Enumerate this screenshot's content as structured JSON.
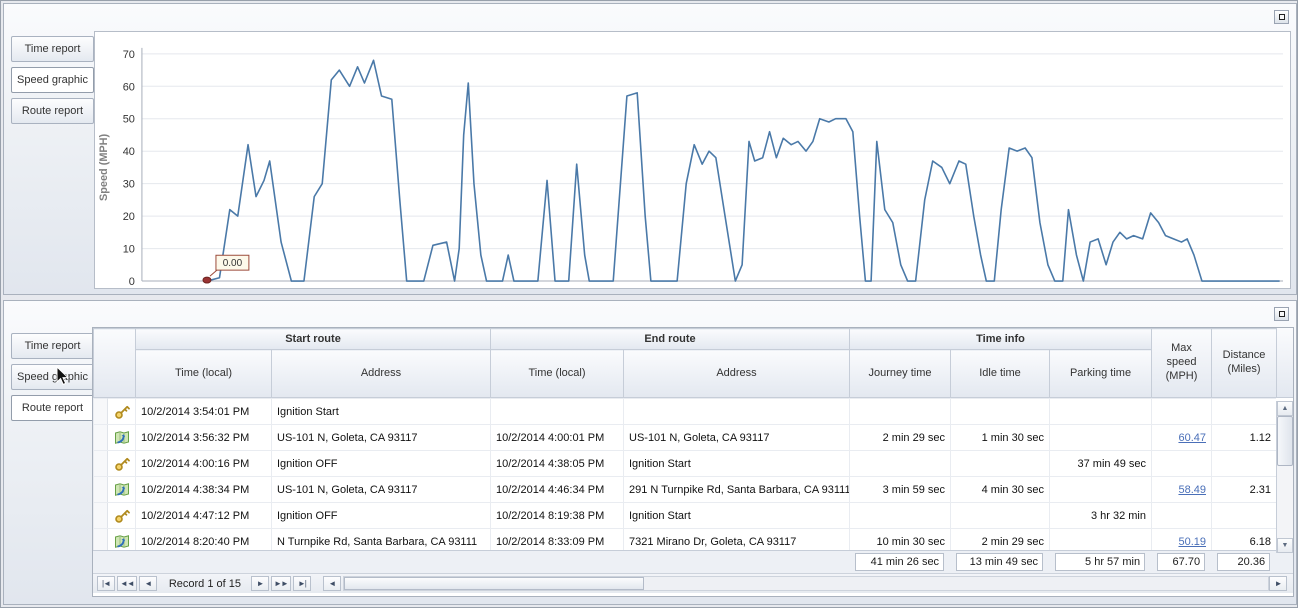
{
  "panels": {
    "top": {
      "tabs": [
        {
          "label": "Time report",
          "selected": false
        },
        {
          "label": "Speed graphic",
          "selected": true
        },
        {
          "label": "Route report",
          "selected": false
        }
      ]
    },
    "bottom": {
      "tabs": [
        {
          "label": "Time report",
          "selected": false
        },
        {
          "label": "Speed graphic",
          "selected": false
        },
        {
          "label": "Route report",
          "selected": true
        }
      ]
    }
  },
  "chart_data": {
    "type": "line",
    "title": "",
    "xlabel": "",
    "ylabel": "Speed (MPH)",
    "ylim": [
      0,
      70
    ],
    "yticks": [
      0,
      10,
      20,
      30,
      40,
      50,
      60,
      70
    ],
    "xticks": [],
    "show_gridlines": true,
    "legend": false,
    "line_color": "#4a79a8",
    "marker_color": "#993333",
    "annotation": {
      "text": "0.00",
      "at_first_point": true
    },
    "x_unit": "percent-of-plot-width",
    "y_unit": "MPH",
    "points": [
      [
        5.7,
        0
      ],
      [
        6.8,
        1
      ],
      [
        7.7,
        22
      ],
      [
        8.4,
        20
      ],
      [
        9.3,
        42
      ],
      [
        10,
        26
      ],
      [
        10.7,
        31
      ],
      [
        11.2,
        37
      ],
      [
        12.2,
        12
      ],
      [
        13.1,
        0
      ],
      [
        14.2,
        0
      ],
      [
        15.1,
        26
      ],
      [
        15.8,
        30
      ],
      [
        16.6,
        62
      ],
      [
        17.3,
        65
      ],
      [
        18.2,
        60
      ],
      [
        18.9,
        66
      ],
      [
        19.5,
        61
      ],
      [
        20.3,
        68
      ],
      [
        21,
        57
      ],
      [
        21.9,
        56
      ],
      [
        22.6,
        25
      ],
      [
        23.2,
        0
      ],
      [
        24.7,
        0
      ],
      [
        25.5,
        11
      ],
      [
        26.7,
        12
      ],
      [
        27.4,
        0
      ],
      [
        27.8,
        10
      ],
      [
        28.2,
        45
      ],
      [
        28.6,
        61
      ],
      [
        29.1,
        30
      ],
      [
        29.7,
        8
      ],
      [
        30.2,
        0
      ],
      [
        31.6,
        0
      ],
      [
        32.1,
        8
      ],
      [
        32.6,
        0
      ],
      [
        34.7,
        0
      ],
      [
        35.5,
        31
      ],
      [
        36.2,
        0
      ],
      [
        37.4,
        0
      ],
      [
        38.1,
        36
      ],
      [
        38.8,
        8
      ],
      [
        39.2,
        0
      ],
      [
        41.3,
        0
      ],
      [
        42.5,
        57
      ],
      [
        43.4,
        58
      ],
      [
        44.1,
        20
      ],
      [
        44.6,
        0
      ],
      [
        46.9,
        0
      ],
      [
        47.7,
        30
      ],
      [
        48.4,
        42
      ],
      [
        49.1,
        36
      ],
      [
        49.7,
        40
      ],
      [
        50.3,
        38
      ],
      [
        51.1,
        20
      ],
      [
        52,
        0
      ],
      [
        52.6,
        5
      ],
      [
        53.2,
        43
      ],
      [
        53.7,
        37
      ],
      [
        54.4,
        38
      ],
      [
        55,
        46
      ],
      [
        55.6,
        38
      ],
      [
        56.2,
        44
      ],
      [
        56.9,
        42
      ],
      [
        57.5,
        43
      ],
      [
        58.2,
        40
      ],
      [
        58.8,
        43
      ],
      [
        59.4,
        50
      ],
      [
        60.2,
        49
      ],
      [
        60.8,
        50
      ],
      [
        61.7,
        50
      ],
      [
        62.3,
        46
      ],
      [
        62.9,
        20
      ],
      [
        63.4,
        0
      ],
      [
        63.9,
        0
      ],
      [
        64.4,
        43
      ],
      [
        65.1,
        22
      ],
      [
        65.8,
        18
      ],
      [
        66.5,
        5
      ],
      [
        67.1,
        0
      ],
      [
        67.8,
        0
      ],
      [
        68.6,
        25
      ],
      [
        69.3,
        37
      ],
      [
        70.1,
        35
      ],
      [
        70.8,
        30
      ],
      [
        71.6,
        37
      ],
      [
        72.2,
        36
      ],
      [
        72.9,
        20
      ],
      [
        73.5,
        8
      ],
      [
        74,
        0
      ],
      [
        74.7,
        0
      ],
      [
        75.3,
        22
      ],
      [
        76,
        41
      ],
      [
        76.7,
        40
      ],
      [
        77.4,
        41
      ],
      [
        78,
        38
      ],
      [
        78.7,
        18
      ],
      [
        79.4,
        5
      ],
      [
        80,
        0
      ],
      [
        80.7,
        0
      ],
      [
        81.2,
        22
      ],
      [
        81.9,
        8
      ],
      [
        82.5,
        0
      ],
      [
        83.1,
        12
      ],
      [
        83.8,
        13
      ],
      [
        84.5,
        5
      ],
      [
        85.1,
        12
      ],
      [
        85.7,
        15
      ],
      [
        86.3,
        13
      ],
      [
        86.9,
        14
      ],
      [
        87.7,
        13
      ],
      [
        88.4,
        21
      ],
      [
        89.1,
        18
      ],
      [
        89.7,
        14
      ],
      [
        90.4,
        13
      ],
      [
        91.1,
        12
      ],
      [
        91.6,
        13
      ],
      [
        92.2,
        8
      ],
      [
        92.9,
        0
      ],
      [
        93.6,
        0
      ],
      [
        96,
        0
      ],
      [
        99.7,
        0
      ]
    ]
  },
  "route_table": {
    "bands": [
      {
        "label": "Start route"
      },
      {
        "label": "End route"
      },
      {
        "label": "Time info"
      }
    ],
    "columns": {
      "start_time": "Time (local)",
      "start_address": "Address",
      "end_time": "Time (local)",
      "end_address": "Address",
      "journey": "Journey time",
      "idle": "Idle time",
      "parking": "Parking time",
      "max_speed": "Max speed (MPH)",
      "distance": "Distance (Miles)"
    },
    "rows": [
      {
        "icon": "key",
        "start_time": "10/2/2014 3:54:01 PM",
        "start_address": "Ignition Start",
        "end_time": "",
        "end_address": "",
        "journey": "",
        "idle": "",
        "parking": "",
        "max_speed": "",
        "distance": ""
      },
      {
        "icon": "route",
        "start_time": "10/2/2014 3:56:32 PM",
        "start_address": "US-101 N, Goleta, CA 93117",
        "end_time": "10/2/2014 4:00:01 PM",
        "end_address": "US-101 N, Goleta, CA 93117",
        "journey": "2 min 29 sec",
        "idle": "1 min 30 sec",
        "parking": "",
        "max_speed": "60.47",
        "distance": "1.12"
      },
      {
        "icon": "key",
        "start_time": "10/2/2014 4:00:16 PM",
        "start_address": "Ignition OFF",
        "end_time": "10/2/2014 4:38:05 PM",
        "end_address": "Ignition Start",
        "journey": "",
        "idle": "",
        "parking": "37 min 49 sec",
        "max_speed": "",
        "distance": ""
      },
      {
        "icon": "route",
        "start_time": "10/2/2014 4:38:34 PM",
        "start_address": "US-101 N, Goleta, CA 93117",
        "end_time": "10/2/2014 4:46:34 PM",
        "end_address": "291 N Turnpike Rd, Santa Barbara, CA 93111",
        "journey": "3 min 59 sec",
        "idle": "4 min 30 sec",
        "parking": "",
        "max_speed": "58.49",
        "distance": "2.31"
      },
      {
        "icon": "key",
        "start_time": "10/2/2014 4:47:12 PM",
        "start_address": "Ignition OFF",
        "end_time": "10/2/2014 8:19:38 PM",
        "end_address": "Ignition Start",
        "journey": "",
        "idle": "",
        "parking": "3 hr 32 min",
        "max_speed": "",
        "distance": ""
      },
      {
        "icon": "route",
        "start_time": "10/2/2014 8:20:40 PM",
        "start_address": "N Turnpike Rd, Santa Barbara, CA 93111",
        "end_time": "10/2/2014 8:33:09 PM",
        "end_address": "7321 Mirano Dr, Goleta, CA 93117",
        "journey": "10 min 30 sec",
        "idle": "2 min 29 sec",
        "parking": "",
        "max_speed": "50.19",
        "distance": "6.18"
      }
    ],
    "summary": {
      "journey": "41 min 26 sec",
      "idle": "13 min 49 sec",
      "parking": "5 hr 57 min",
      "max_speed": "67.70",
      "distance": "20.36"
    },
    "navigator": {
      "label": "Record 1 of 15",
      "buttons_left": [
        {
          "name": "first-record",
          "glyph": "|◄"
        },
        {
          "name": "prev-page",
          "glyph": "◄◄"
        },
        {
          "name": "prev-record",
          "glyph": "◄"
        }
      ],
      "buttons_right": [
        {
          "name": "next-record",
          "glyph": "►"
        },
        {
          "name": "next-page",
          "glyph": "►►"
        },
        {
          "name": "last-record",
          "glyph": "►|"
        }
      ],
      "h_scroll_left_glyph": "◄",
      "h_scroll_right_glyph": "►"
    },
    "scrollbar": {
      "up_glyph": "▲",
      "down_glyph": "▼"
    }
  }
}
